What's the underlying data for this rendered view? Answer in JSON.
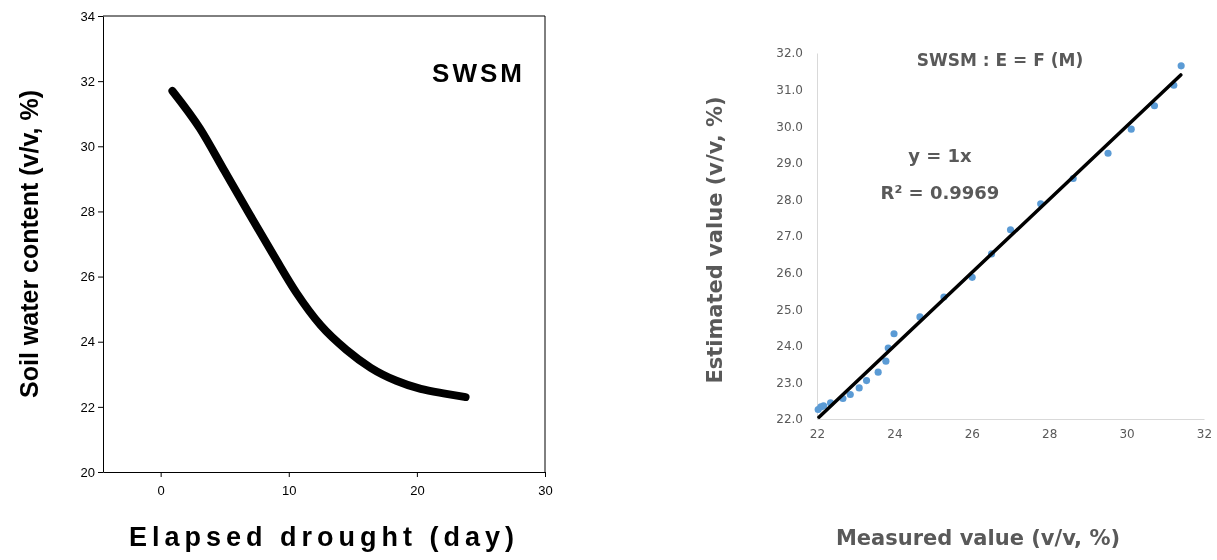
{
  "chart_data": [
    {
      "type": "line",
      "title": "SWSM",
      "xlabel": "Elapsed drought (day)",
      "ylabel": "Soil water content (v/v, %)",
      "xlim": [
        -4.5,
        30
      ],
      "xticks": [
        0,
        10,
        20,
        30
      ],
      "ylim": [
        20,
        34
      ],
      "yticks": [
        20,
        22,
        24,
        26,
        28,
        30,
        32,
        34
      ],
      "line_style": "solid",
      "series": [
        {
          "color": "#000000",
          "x": [
            0.92,
            3.06,
            5.0,
            6.96,
            8.9,
            10.6,
            12.5,
            14.5,
            16.4,
            18.4,
            20.3,
            22.3,
            23.8
          ],
          "values": [
            31.7,
            30.55,
            29.23,
            27.9,
            26.6,
            25.5,
            24.5,
            23.75,
            23.2,
            22.8,
            22.55,
            22.4,
            22.3
          ]
        }
      ]
    },
    {
      "type": "scatter",
      "title": "SWSM : E = F (M)",
      "xlabel": "Measured value (v/v, %)",
      "ylabel": "Estimated value (v/v, %)",
      "annotations": [
        "y = 1x",
        "R² = 0.9969"
      ],
      "xlim": [
        22,
        32
      ],
      "xticks": [
        22,
        24,
        26,
        28,
        30,
        32
      ],
      "ylim": [
        22,
        32
      ],
      "yticks": [
        {
          "value": 22,
          "label": "22.0"
        },
        {
          "value": 23,
          "label": "23.0"
        },
        {
          "value": 24,
          "label": "24.0"
        },
        {
          "value": 25,
          "label": "25.0"
        },
        {
          "value": 26,
          "label": "26.0"
        },
        {
          "value": 27,
          "label": "27.0"
        },
        {
          "value": 28,
          "label": "28.0"
        },
        {
          "value": 29,
          "label": "29.0"
        },
        {
          "value": 30,
          "label": "30.0"
        },
        {
          "value": 31,
          "label": "31.0"
        },
        {
          "value": 32,
          "label": "32.0"
        }
      ],
      "series": [
        {
          "marker": "circle",
          "color": "#5b9bd5",
          "x": [
            22.03,
            22.1,
            22.17,
            22.35,
            22.67,
            22.86,
            23.09,
            23.28,
            23.58,
            23.78,
            23.84,
            23.99,
            24.66,
            25.28,
            26.01,
            26.51,
            27.0,
            27.78,
            28.62,
            29.52,
            30.12,
            30.72,
            31.22,
            31.41
          ],
          "values": [
            22.26,
            22.33,
            22.36,
            22.44,
            22.56,
            22.67,
            22.85,
            23.05,
            23.28,
            23.58,
            23.94,
            24.33,
            24.79,
            25.33,
            25.87,
            26.51,
            27.17,
            27.88,
            28.57,
            29.26,
            29.92,
            30.56,
            31.12,
            31.65
          ]
        },
        {
          "type": "line",
          "color": "#000000",
          "x": [
            22.05,
            31.4
          ],
          "values": [
            22.05,
            31.4
          ]
        }
      ]
    }
  ]
}
